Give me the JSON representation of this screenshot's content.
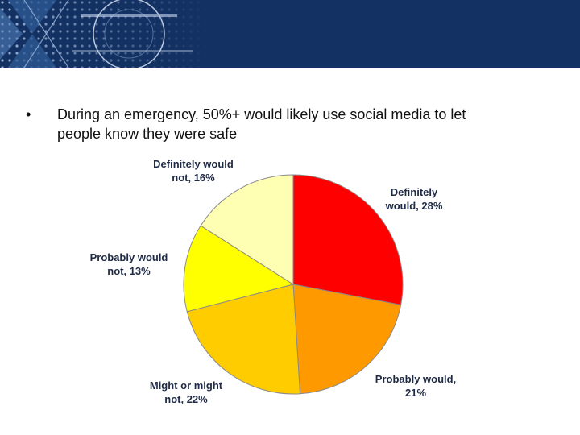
{
  "slide": {
    "bullet_symbol": "•",
    "bullet_line_1": "During an emergency, 50%+ would likely use social media to let",
    "bullet_line_2": "people know they were safe"
  },
  "banner": {
    "background_color": "#143163",
    "graphic_icon": "tech-grid-graphic"
  },
  "chart_data": {
    "type": "pie",
    "title": "",
    "slices": [
      {
        "name": "Definitely would",
        "value": 28,
        "label_line_1": "Definitely",
        "label_line_2": "would, 28%",
        "color": "#ff0000"
      },
      {
        "name": "Probably would",
        "value": 21,
        "label_line_1": "Probably would,",
        "label_line_2": "21%",
        "color": "#ff9900"
      },
      {
        "name": "Might or might not",
        "value": 22,
        "label_line_1": "Might or might",
        "label_line_2": "not, 22%",
        "color": "#ffcc00"
      },
      {
        "name": "Probably would not",
        "value": 13,
        "label_line_1": "Probably would",
        "label_line_2": "not, 13%",
        "color": "#ffff00"
      },
      {
        "name": "Definitely would not",
        "value": 16,
        "label_line_1": "Definitely would",
        "label_line_2": "not, 16%",
        "color": "#ffffb3"
      }
    ],
    "start_angle_deg": 0,
    "direction": "clockwise",
    "legend": "none"
  }
}
